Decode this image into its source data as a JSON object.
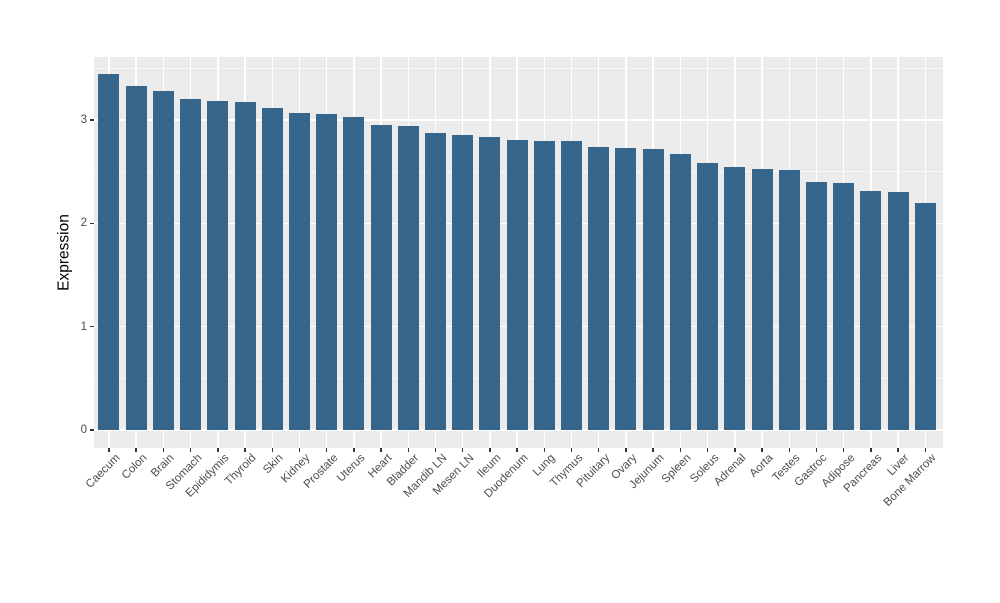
{
  "chart_data": {
    "type": "bar",
    "title": "",
    "xlabel": "",
    "ylabel": "Expression",
    "categories": [
      "Caecum",
      "Colon",
      "Brain",
      "Stomach",
      "Epididymis",
      "Thyroid",
      "Skin",
      "Kidney",
      "Prostate",
      "Uterus",
      "Heart",
      "Bladder",
      "Mandib LN",
      "Mesen LN",
      "Ileum",
      "Duodenum",
      "Lung",
      "Thymus",
      "Pituitary",
      "Ovary",
      "Jejunum",
      "Spleen",
      "Soleus",
      "Adrenal",
      "Aorta",
      "Testes",
      "Gastroc",
      "Adipose",
      "Pancreas",
      "Liver",
      "Bone Marrow"
    ],
    "values": [
      3.45,
      3.33,
      3.28,
      3.21,
      3.19,
      3.18,
      3.12,
      3.07,
      3.06,
      3.03,
      2.95,
      2.94,
      2.88,
      2.86,
      2.84,
      2.81,
      2.8,
      2.8,
      2.74,
      2.73,
      2.72,
      2.67,
      2.59,
      2.55,
      2.53,
      2.52,
      2.4,
      2.39,
      2.31,
      2.3,
      2.2
    ],
    "yticks": [
      0,
      1,
      2,
      3
    ],
    "yticks_minor": [
      0.5,
      1.5,
      2.5,
      3.5
    ],
    "ylim": [
      -0.17,
      3.61
    ],
    "grid": true,
    "legend": "none",
    "colors": {
      "bar": "#36658C",
      "panel_bg": "#EBEBEB",
      "grid_major": "#FFFFFF",
      "grid_minor": "rgba(255,255,255,0.65)",
      "tick_mark": "#333333",
      "tick_label": "#4D4D4D",
      "axis_title": "#000000",
      "figure_bg": "#FFFFFF"
    }
  }
}
